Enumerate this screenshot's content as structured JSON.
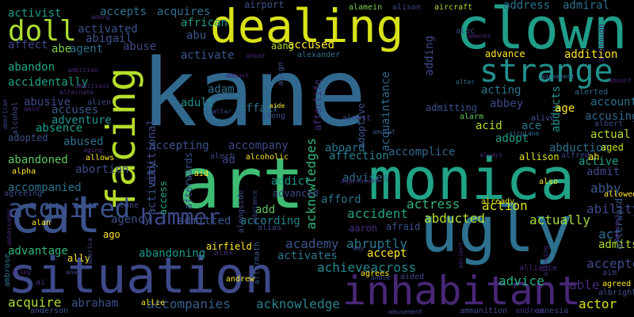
{
  "words": [
    {
      "text": "kane",
      "color": "#31698e"
    },
    {
      "text": "art",
      "color": "#3fbc73"
    },
    {
      "text": "monica",
      "color": "#20a386"
    },
    {
      "text": "situation",
      "color": "#3e4989"
    },
    {
      "text": "ugly",
      "color": "#2d718e"
    },
    {
      "text": "clown",
      "color": "#1f9e89"
    },
    {
      "text": "cat",
      "color": "#3b528b"
    },
    {
      "text": "dealing",
      "color": "#d8e219"
    },
    {
      "text": "inhabitant",
      "color": "#482777"
    },
    {
      "text": "facing",
      "color": "#b5de2b"
    },
    {
      "text": "strange",
      "color": "#21918c"
    },
    {
      "text": "hammer",
      "color": "#3e4989"
    },
    {
      "text": "doll",
      "color": "#addc30"
    },
    {
      "text": "acquired",
      "color": "#3b528b"
    },
    {
      "text": "accompanies",
      "color": "#355f8d"
    },
    {
      "text": "acknowledge",
      "color": "#26828e"
    },
    {
      "text": "acknowledges",
      "color": "#35b779"
    },
    {
      "text": "achieveacross",
      "color": "#24868e"
    },
    {
      "text": "abruptly",
      "color": "#2a788e"
    },
    {
      "text": "academy",
      "color": "#3b528b"
    },
    {
      "text": "accident",
      "color": "#20a386"
    },
    {
      "text": "abducted",
      "color": "#b5de2b"
    },
    {
      "text": "actress",
      "color": "#31b57b"
    },
    {
      "text": "action",
      "color": "#dde318"
    },
    {
      "text": "actually",
      "color": "#a2da37"
    },
    {
      "text": "ability",
      "color": "#3e4989"
    },
    {
      "text": "abby",
      "color": "#38588c"
    },
    {
      "text": "act",
      "color": "#2d708e"
    },
    {
      "text": "admits",
      "color": "#addc30"
    },
    {
      "text": "accepted",
      "color": "#3e4989"
    },
    {
      "text": "able",
      "color": "#482878"
    },
    {
      "text": "advice",
      "color": "#27ad81"
    },
    {
      "text": "actor",
      "color": "#d8e219"
    },
    {
      "text": "abraham",
      "color": "#3b528b"
    },
    {
      "text": "acquire",
      "color": "#addc30"
    },
    {
      "text": "advantage",
      "color": "#35b779"
    },
    {
      "text": "accompanied",
      "color": "#2c728e"
    },
    {
      "text": "abandoned",
      "color": "#5ec962"
    },
    {
      "text": "abortion",
      "color": "#3e4c8a"
    },
    {
      "text": "abandoning",
      "color": "#1f988b"
    },
    {
      "text": "admitted",
      "color": "#3b528b"
    },
    {
      "text": "according",
      "color": "#25848e"
    },
    {
      "text": "activates",
      "color": "#2a788e"
    },
    {
      "text": "accept",
      "color": "#fde725"
    },
    {
      "text": "aaron",
      "color": "#472d7b"
    },
    {
      "text": "afraid",
      "color": "#3b528b"
    },
    {
      "text": "add",
      "color": "#5ec962"
    },
    {
      "text": "addict",
      "color": "#1f988b"
    },
    {
      "text": "advanced",
      "color": "#3e4989"
    },
    {
      "text": "afford",
      "color": "#2c728e"
    },
    {
      "text": "aboard",
      "color": "#2a788e"
    },
    {
      "text": "accomplice",
      "color": "#31688e"
    },
    {
      "text": "affection",
      "color": "#26828e"
    },
    {
      "text": "advises",
      "color": "#2d708e"
    },
    {
      "text": "accompany",
      "color": "#3e4989"
    },
    {
      "text": "accepting",
      "color": "#3b528b"
    },
    {
      "text": "activity",
      "color": "#3b528b"
    },
    {
      "text": "access",
      "color": "#20a486"
    },
    {
      "text": "afterwards",
      "color": "#3b528b"
    },
    {
      "text": "additional",
      "color": "#3e4989"
    },
    {
      "text": "activate",
      "color": "#38588c"
    },
    {
      "text": "adam",
      "color": "#2d708e"
    },
    {
      "text": "adult",
      "color": "#21918c"
    },
    {
      "text": "affair",
      "color": "#2d708e"
    },
    {
      "text": "accused",
      "color": "#fde725"
    },
    {
      "text": "aang",
      "color": "#addc30"
    },
    {
      "text": "abu",
      "color": "#38588c"
    },
    {
      "text": "african",
      "color": "#1f9e89"
    },
    {
      "text": "abigail",
      "color": "#3b528b"
    },
    {
      "text": "abe",
      "color": "#7ad151"
    },
    {
      "text": "agent",
      "color": "#2c728e"
    },
    {
      "text": "abuse",
      "color": "#3e4989"
    },
    {
      "text": "accepts",
      "color": "#2c728e"
    },
    {
      "text": "acquires",
      "color": "#2d708e"
    },
    {
      "text": "activist",
      "color": "#1f9e89"
    },
    {
      "text": "activated",
      "color": "#3b528b"
    },
    {
      "text": "affect",
      "color": "#3e4989"
    },
    {
      "text": "abandon",
      "color": "#22a785"
    },
    {
      "text": "accidentally",
      "color": "#20a386"
    },
    {
      "text": "abusive",
      "color": "#3e4989"
    },
    {
      "text": "accuses",
      "color": "#38588c"
    },
    {
      "text": "adventure",
      "color": "#21918c"
    },
    {
      "text": "absence",
      "color": "#1f9e89"
    },
    {
      "text": "adopted",
      "color": "#3b528b"
    },
    {
      "text": "abused",
      "color": "#2d708e"
    },
    {
      "text": "address",
      "color": "#2c728e"
    },
    {
      "text": "admiral",
      "color": "#2d708e"
    },
    {
      "text": "adding",
      "color": "#3e4989"
    },
    {
      "text": "acquaintance",
      "color": "#31688e"
    },
    {
      "text": "advance",
      "color": "#fde725"
    },
    {
      "text": "addition",
      "color": "#fde725"
    },
    {
      "text": "acting",
      "color": "#2a788e"
    },
    {
      "text": "abbey",
      "color": "#3e4989"
    },
    {
      "text": "account",
      "color": "#2c728e"
    },
    {
      "text": "accusing",
      "color": "#31688e"
    },
    {
      "text": "abducts",
      "color": "#21918c"
    },
    {
      "text": "age",
      "color": "#fde725"
    },
    {
      "text": "admitting",
      "color": "#3b528b"
    },
    {
      "text": "adoptive",
      "color": "#3b528b"
    },
    {
      "text": "afterlife",
      "color": "#472d7b"
    },
    {
      "text": "acid",
      "color": "#addc30"
    },
    {
      "text": "ace",
      "color": "#2a788e"
    },
    {
      "text": "adopt",
      "color": "#1f9e89"
    },
    {
      "text": "abduction",
      "color": "#2c728e"
    },
    {
      "text": "actual",
      "color": "#b5de2b"
    },
    {
      "text": "aged",
      "color": "#c2df23"
    },
    {
      "text": "active",
      "color": "#1f9e89"
    },
    {
      "text": "admit",
      "color": "#3e4989"
    },
    {
      "text": "afterward",
      "color": "#38588c"
    },
    {
      "text": "airport",
      "color": "#3b528b"
    },
    {
      "text": "airfield",
      "color": "#fde725"
    },
    {
      "text": "aircraft",
      "color": "#addc30"
    },
    {
      "text": "alamein",
      "color": "#7ad151"
    },
    {
      "text": "alison",
      "color": "#3e4989"
    },
    {
      "text": "align",
      "color": "#3b528b"
    },
    {
      "text": "alexander",
      "color": "#2d708e"
    },
    {
      "text": "ahead",
      "color": "#482878"
    },
    {
      "text": "agreement",
      "color": "#31688e"
    },
    {
      "text": "although",
      "color": "#482878"
    },
    {
      "text": "amount",
      "color": "#482878"
    },
    {
      "text": "alerted",
      "color": "#31688e"
    },
    {
      "text": "alter",
      "color": "#2d708e"
    },
    {
      "text": "alarm",
      "color": "#5ec962"
    },
    {
      "text": "alive",
      "color": "#3e4989"
    },
    {
      "text": "albert",
      "color": "#3e4989"
    },
    {
      "text": "airplane",
      "color": "#31688e"
    },
    {
      "text": "allison",
      "color": "#dde318"
    },
    {
      "text": "alfred",
      "color": "#3e4989"
    },
    {
      "text": "ah",
      "color": "#fde725"
    },
    {
      "text": "also",
      "color": "#fde725"
    },
    {
      "text": "allowed",
      "color": "#fde725"
    },
    {
      "text": "amongst",
      "color": "#482878"
    },
    {
      "text": "already",
      "color": "#d8e219"
    },
    {
      "text": "alliance",
      "color": "#482878"
    },
    {
      "text": "aim",
      "color": "#3e4989"
    },
    {
      "text": "agreed",
      "color": "#fde725"
    },
    {
      "text": "albright",
      "color": "#3b528b"
    },
    {
      "text": "amnesia",
      "color": "#3e4989"
    },
    {
      "text": "ammunition",
      "color": "#3e4989"
    },
    {
      "text": "andrea",
      "color": "#482878"
    },
    {
      "text": "amusement",
      "color": "#3e4989"
    },
    {
      "text": "anderson",
      "color": "#3b528b"
    },
    {
      "text": "allie",
      "color": "#fde725"
    },
    {
      "text": "alley",
      "color": "#482878"
    },
    {
      "text": "ai",
      "color": "#482878"
    },
    {
      "text": "ambrose",
      "color": "#2d708e"
    },
    {
      "text": "ally",
      "color": "#fde725"
    },
    {
      "text": "america",
      "color": "#3e4989"
    },
    {
      "text": "ago",
      "color": "#fde725"
    },
    {
      "text": "alan",
      "color": "#fde725"
    },
    {
      "text": "ambassador",
      "color": "#482878"
    },
    {
      "text": "agreeing",
      "color": "#3e4989"
    },
    {
      "text": "alpha",
      "color": "#fde725"
    },
    {
      "text": "allows",
      "color": "#fde725"
    },
    {
      "text": "aging",
      "color": "#482878"
    },
    {
      "text": "alcoholic",
      "color": "#fde725"
    },
    {
      "text": "amulet",
      "color": "#3b528b"
    },
    {
      "text": "alert",
      "color": "#3e4989"
    },
    {
      "text": "aid",
      "color": "#fde725"
    },
    {
      "text": "ad",
      "color": "#3e4989"
    },
    {
      "text": "aggressive",
      "color": "#482878"
    },
    {
      "text": "alongside",
      "color": "#3e4989"
    },
    {
      "text": "ambulance",
      "color": "#3e4989"
    },
    {
      "text": "alone",
      "color": "#3e4989"
    },
    {
      "text": "agency",
      "color": "#3b528b"
    },
    {
      "text": "alias",
      "color": "#3e4989"
    },
    {
      "text": "aftermath",
      "color": "#3b528b"
    },
    {
      "text": "aided",
      "color": "#3e4989"
    },
    {
      "text": "agrees",
      "color": "#fde725"
    },
    {
      "text": "andie",
      "color": "#3e4989"
    },
    {
      "text": "andrew",
      "color": "#fde725"
    },
    {
      "text": "amy",
      "color": "#3e4989"
    },
    {
      "text": "ancient",
      "color": "#482878"
    },
    {
      "text": "allowing",
      "color": "#482878"
    },
    {
      "text": "alex",
      "color": "#482878"
    },
    {
      "text": "ana",
      "color": "#3e4989"
    },
    {
      "text": "aide",
      "color": "#fde725"
    },
    {
      "text": "along",
      "color": "#3e4989"
    },
    {
      "text": "almost",
      "color": "#3e4989"
    },
    {
      "text": "altar",
      "color": "#3e4989"
    },
    {
      "text": "ambush",
      "color": "#482878"
    },
    {
      "text": "always",
      "color": "#482878"
    },
    {
      "text": "alec",
      "color": "#3e4989"
    },
    {
      "text": "amends",
      "color": "#482878"
    },
    {
      "text": "among",
      "color": "#482878"
    },
    {
      "text": "ambition",
      "color": "#482878"
    },
    {
      "text": "ambitious",
      "color": "#482878"
    },
    {
      "text": "alternate",
      "color": "#482878"
    },
    {
      "text": "alien",
      "color": "#3e4989"
    },
    {
      "text": "american",
      "color": "#3e4989"
    },
    {
      "text": "alcohol",
      "color": "#3e4989"
    },
    {
      "text": "amid",
      "color": "#482878"
    },
    {
      "text": "alive",
      "color": "#3e4989"
    }
  ]
}
